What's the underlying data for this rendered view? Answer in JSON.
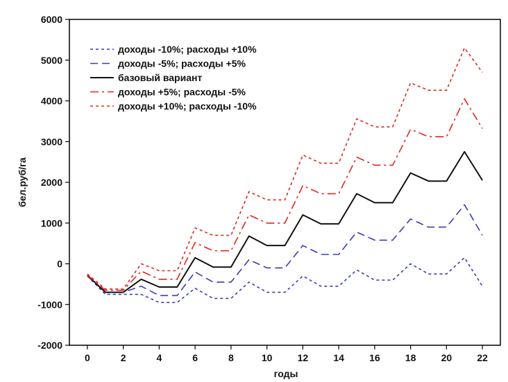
{
  "chart_data": {
    "type": "line",
    "title": "",
    "xlabel": "годы",
    "ylabel": "бел.руб/га",
    "xlim": [
      -1,
      23
    ],
    "ylim": [
      -2000,
      6000
    ],
    "xticks": [
      0,
      2,
      4,
      6,
      8,
      10,
      12,
      14,
      16,
      18,
      20,
      22
    ],
    "yticks": [
      -2000,
      -1000,
      0,
      1000,
      2000,
      3000,
      4000,
      5000,
      6000
    ],
    "grid": false,
    "legend_position": "top-left",
    "x": [
      0,
      1,
      2,
      3,
      4,
      5,
      6,
      7,
      8,
      9,
      10,
      11,
      12,
      13,
      14,
      15,
      16,
      17,
      18,
      19,
      20,
      21,
      22
    ],
    "series": [
      {
        "name": "доходы -10%; расходы +10%",
        "color": "#3a3ab8",
        "dash": "short",
        "values": [
          -300,
          -750,
          -750,
          -750,
          -950,
          -950,
          -600,
          -850,
          -850,
          -450,
          -700,
          -700,
          -300,
          -550,
          -550,
          -150,
          -400,
          -400,
          0,
          -250,
          -250,
          150,
          -550
        ]
      },
      {
        "name": "доходы -5%; расходы +5%",
        "color": "#3a3ab8",
        "dash": "long",
        "values": [
          -300,
          -700,
          -700,
          -550,
          -780,
          -780,
          -200,
          -450,
          -450,
          100,
          -100,
          -100,
          450,
          230,
          230,
          780,
          580,
          580,
          1100,
          900,
          900,
          1450,
          700
        ]
      },
      {
        "name": "базовый вариант",
        "color": "#111111",
        "dash": "solid",
        "values": [
          -280,
          -700,
          -700,
          -380,
          -570,
          -570,
          150,
          -80,
          -80,
          680,
          450,
          450,
          1200,
          980,
          980,
          1720,
          1500,
          1500,
          2230,
          2030,
          2030,
          2750,
          2050
        ]
      },
      {
        "name": "доходы +5%; расходы -5%",
        "color": "#e2251b",
        "dash": "dashdot",
        "values": [
          -280,
          -650,
          -650,
          -180,
          -380,
          -380,
          520,
          320,
          320,
          1200,
          1000,
          1000,
          1920,
          1720,
          1720,
          2620,
          2420,
          2420,
          3300,
          3120,
          3120,
          4050,
          3320
        ]
      },
      {
        "name": "доходы +10%; расходы -10%",
        "color": "#e2251b",
        "dash": "short",
        "values": [
          -250,
          -620,
          -620,
          0,
          -170,
          -170,
          880,
          700,
          700,
          1770,
          1570,
          1570,
          2670,
          2470,
          2470,
          3560,
          3360,
          3360,
          4440,
          4260,
          4260,
          5300,
          4700
        ]
      }
    ]
  }
}
